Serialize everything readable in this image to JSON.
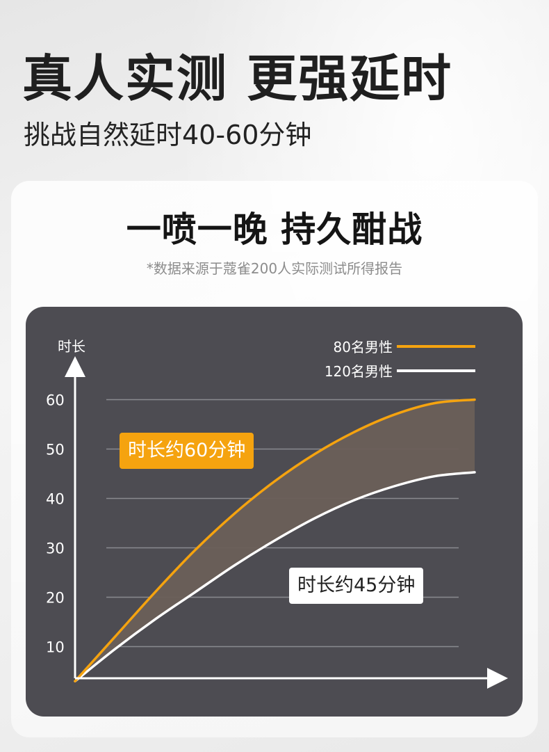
{
  "headline": "真人实测 更强延时",
  "subheadline": "挑战自然延时40-60分钟",
  "card": {
    "title": "一喷一晚 持久酣战",
    "note": "*数据来源于蔻雀200人实际测试所得报告"
  },
  "colors": {
    "accent": "#f5a30f",
    "panel": "#4d4c52",
    "series2": "#ffffff",
    "band": "#6a5f58"
  },
  "chart_data": {
    "type": "line",
    "ylabel": "时长",
    "xlabel": "",
    "ylim": [
      3,
      65
    ],
    "yticks": [
      10,
      20,
      30,
      40,
      50,
      60
    ],
    "grid": true,
    "legend_position": "top-right",
    "series": [
      {
        "name": "80名男性",
        "color": "#f5a30f",
        "points": [
          [
            0,
            3
          ],
          [
            0.1,
            12
          ],
          [
            0.2,
            21
          ],
          [
            0.3,
            29.5
          ],
          [
            0.4,
            37
          ],
          [
            0.5,
            43.5
          ],
          [
            0.6,
            49
          ],
          [
            0.7,
            53.5
          ],
          [
            0.8,
            57
          ],
          [
            0.9,
            59.3
          ],
          [
            1.0,
            60
          ]
        ]
      },
      {
        "name": "120名男性",
        "color": "#ffffff",
        "points": [
          [
            0,
            3
          ],
          [
            0.1,
            9.5
          ],
          [
            0.2,
            15.5
          ],
          [
            0.3,
            21
          ],
          [
            0.4,
            26.5
          ],
          [
            0.5,
            31.5
          ],
          [
            0.6,
            36
          ],
          [
            0.7,
            39.7
          ],
          [
            0.8,
            42.5
          ],
          [
            0.9,
            44.5
          ],
          [
            1.0,
            45.3
          ]
        ]
      }
    ],
    "annotations": [
      {
        "text": "时长约60分钟",
        "style": "orange"
      },
      {
        "text": "时长约45分钟",
        "style": "white"
      }
    ]
  }
}
